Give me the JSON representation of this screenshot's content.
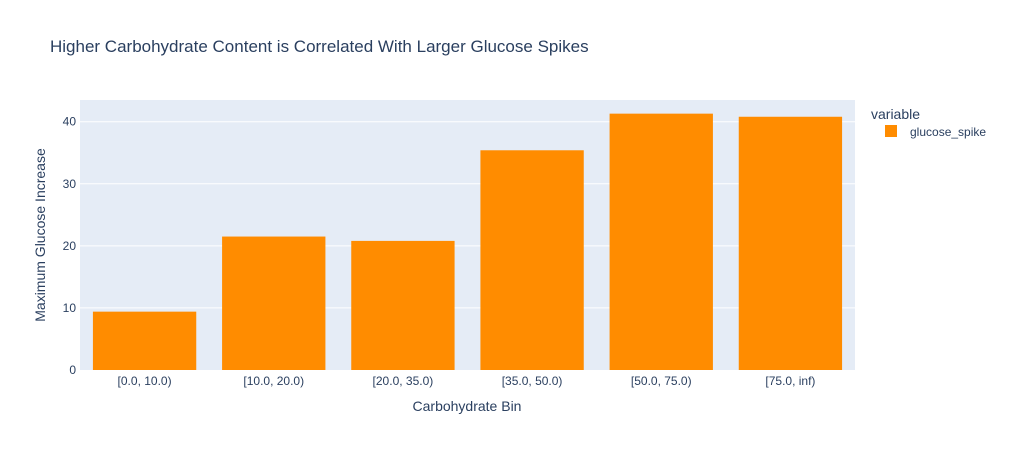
{
  "chart_data": {
    "type": "bar",
    "title": "Higher Carbohydrate Content is Correlated With Larger Glucose Spikes",
    "xlabel": "Carbohydrate Bin",
    "ylabel": "Maximum Glucose Increase",
    "categories": [
      "[0.0, 10.0)",
      "[10.0, 20.0)",
      "[20.0, 35.0)",
      "[35.0, 50.0)",
      "[50.0, 75.0)",
      "[75.0, inf)"
    ],
    "series": [
      {
        "name": "glucose_spike",
        "color": "#ff8c00",
        "values": [
          9.4,
          21.5,
          20.8,
          35.4,
          41.3,
          40.8
        ]
      }
    ],
    "yticks": [
      0,
      10,
      20,
      30,
      40
    ],
    "ylim": [
      0,
      43.5
    ],
    "grid": true,
    "legend": {
      "title": "variable",
      "placement": "right"
    },
    "plot_background": "#e5ecf6"
  }
}
